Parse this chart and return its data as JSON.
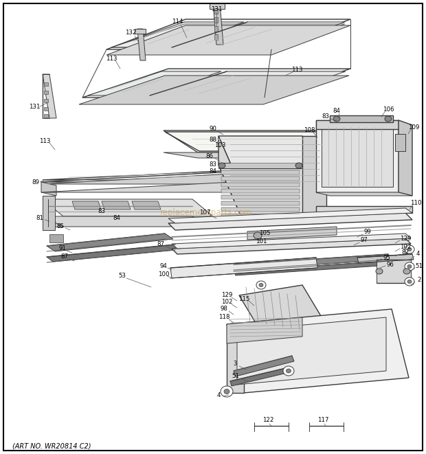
{
  "bg_color": "#ffffff",
  "fig_width": 6.2,
  "fig_height": 6.61,
  "dpi": 100,
  "art_no": "(ART NO. WR20814 C2)",
  "watermark": "replacementparts.com",
  "line_color": "#3a3a3a",
  "label_fontsize": 6.2,
  "art_fontsize": 7.0
}
